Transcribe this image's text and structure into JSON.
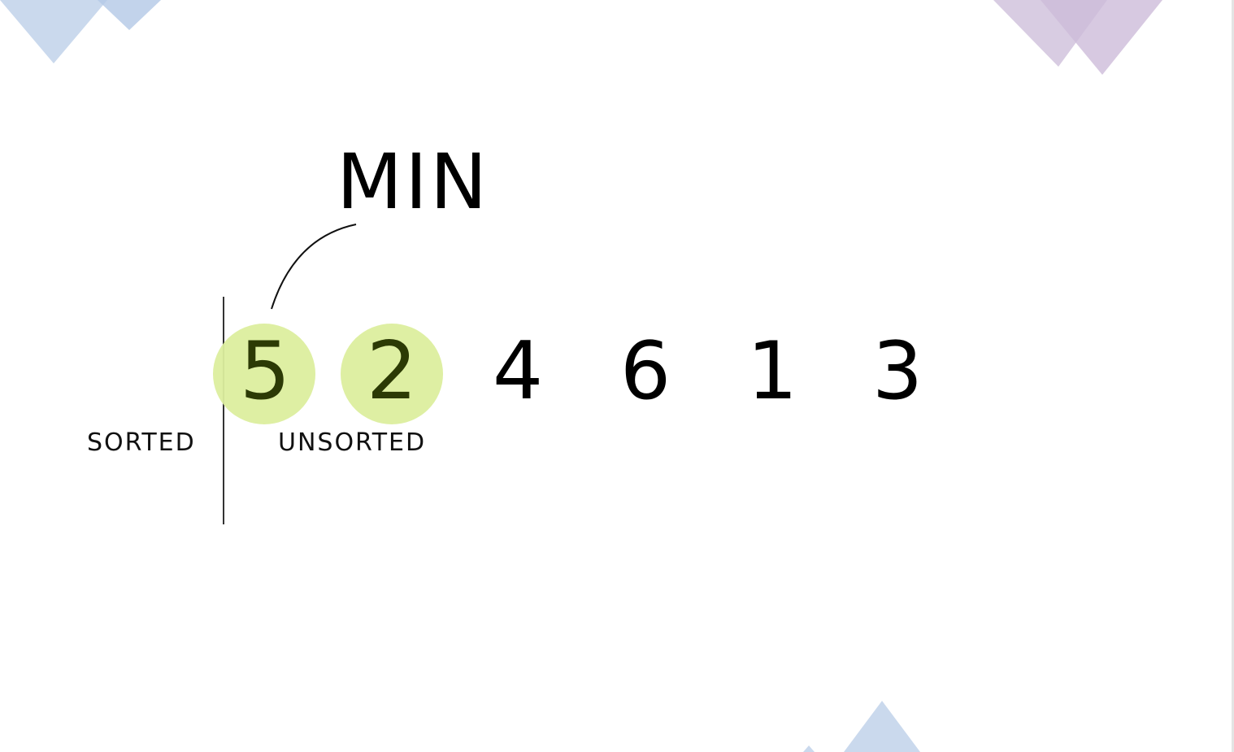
{
  "diagram": {
    "pointer_label": "MIN",
    "values": [
      "5",
      "2",
      "4",
      "6",
      "1",
      "3"
    ],
    "highlighted_indices": [
      0,
      1
    ],
    "sorted_label": "SORTED",
    "unsorted_label": "UNSORTED"
  },
  "colors": {
    "highlight": "#dcee9e",
    "highlight_text": "#2c3a05",
    "decor_blue": "#c7d7ec",
    "decor_purple": "#d4c6df"
  }
}
